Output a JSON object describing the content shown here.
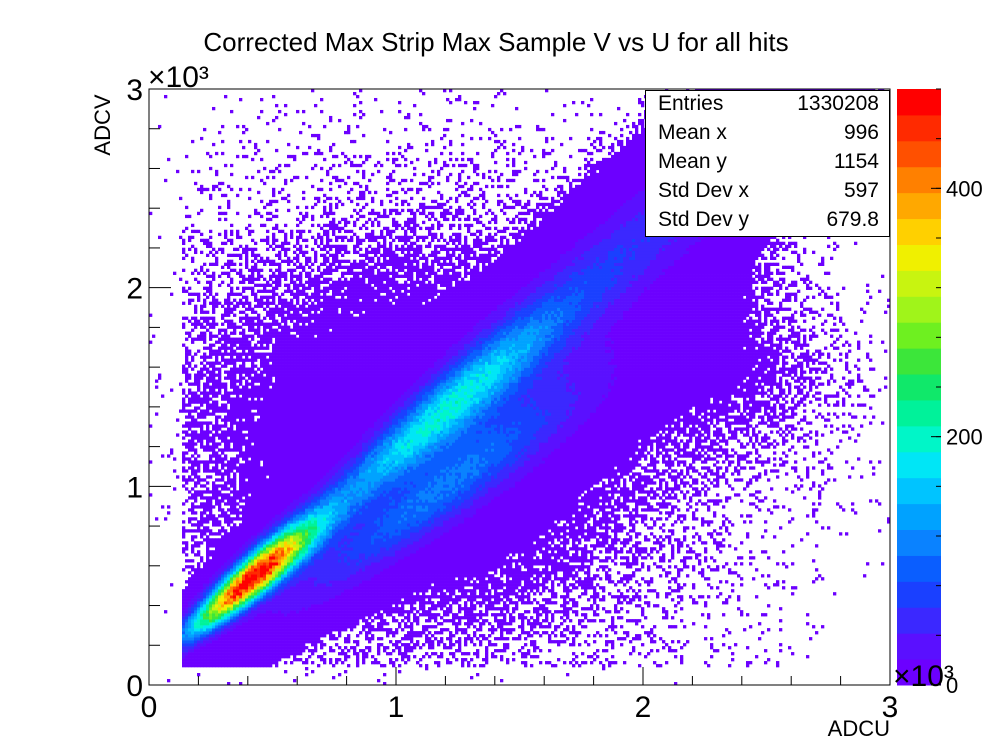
{
  "chart_data": {
    "type": "heatmap",
    "title": "Corrected Max Strip Max Sample V vs U for all hits",
    "xlabel": "ADCU",
    "ylabel": "ADCV",
    "xlim": [
      0,
      3000
    ],
    "ylim": [
      0,
      3000
    ],
    "x_ticks": [
      "0",
      "1",
      "2",
      "3"
    ],
    "y_ticks": [
      "0",
      "1",
      "2",
      "3"
    ],
    "x_exponent": "×10³",
    "y_exponent": "×10³",
    "z_exponent": "×10³",
    "z_range": [
      0,
      480
    ],
    "z_ticks": [
      "0",
      "200",
      "400"
    ],
    "palette": [
      "#6c00ff",
      "#5a10ff",
      "#3b28ff",
      "#1a40ff",
      "#0a5eff",
      "#0a82ff",
      "#00a2ff",
      "#00c4ff",
      "#00e6f6",
      "#00f6c8",
      "#00f29a",
      "#10e86a",
      "#3ce63a",
      "#6ef020",
      "#a0f41a",
      "#c8f410",
      "#f0f000",
      "#ffd000",
      "#ffa800",
      "#ff8000",
      "#ff5000",
      "#ff2a00",
      "#ff0000"
    ],
    "stats": {
      "entries": "1330208",
      "mean_x": "996",
      "mean_y": "1154",
      "std_dev_x": "597",
      "std_dev_y": "679.8"
    }
  },
  "stats_labels": {
    "entries": "Entries",
    "mean_x": "Mean x",
    "mean_y": "Mean y",
    "std_dev_x": "Std Dev x",
    "std_dev_y": "Std Dev y"
  }
}
